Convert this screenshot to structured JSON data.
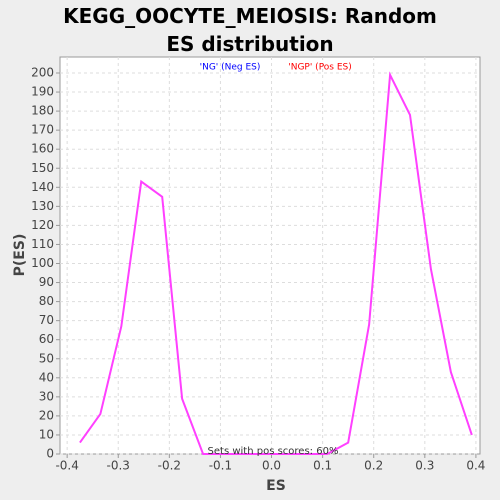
{
  "chart_data": {
    "type": "line",
    "title": "KEGG_OOCYTE_MEIOSIS: Random ES distribution",
    "x_label": "ES",
    "y_label": "P(ES)",
    "legend": [
      "'NG' (Neg ES)",
      "'NGP' (Pos ES)"
    ],
    "legend_colors": [
      "#0000ff",
      "#ff0000"
    ],
    "annotation": "Sets with pos scores: 60%",
    "x": [
      -0.375,
      -0.335,
      -0.294,
      -0.255,
      -0.214,
      -0.175,
      -0.134,
      0.109,
      0.15,
      0.191,
      0.232,
      0.271,
      0.312,
      0.351,
      0.392
    ],
    "values": [
      6,
      21,
      67,
      143,
      135,
      29,
      0,
      0,
      6,
      68,
      199,
      178,
      97,
      43,
      10
    ],
    "color": "#ff40ff",
    "xlim": [
      -0.414,
      0.408
    ],
    "ylim": [
      0,
      208.4
    ],
    "xticks": [
      -0.4,
      -0.3,
      -0.2,
      -0.1,
      {
        "value": 0,
        "label": "0.0"
      },
      0.1,
      0.2,
      0.3,
      0.4
    ],
    "yticks": [
      0,
      10,
      20,
      30,
      40,
      50,
      60,
      70,
      80,
      90,
      100,
      110,
      120,
      130,
      140,
      150,
      160,
      170,
      180,
      190,
      200
    ],
    "grid": true
  }
}
